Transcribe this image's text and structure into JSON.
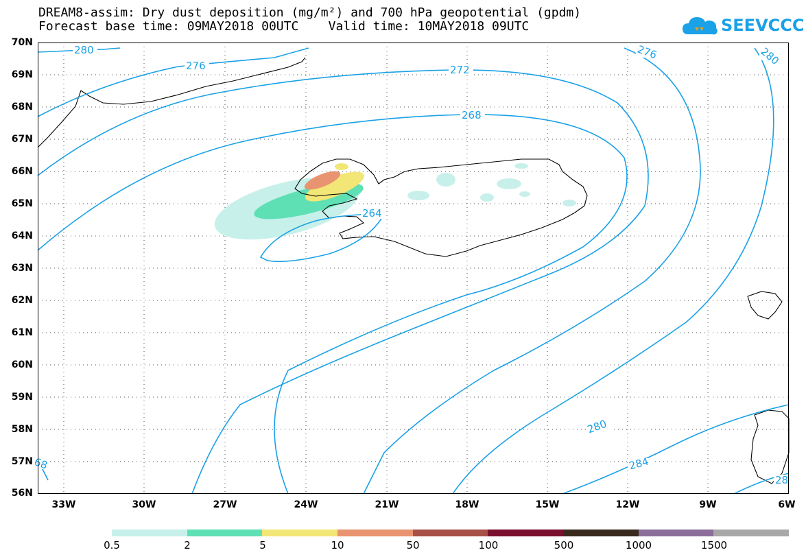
{
  "header": {
    "title_line1": "DREAM8-assim: Dry dust deposition (mg/m²) and 700 hPa geopotential (gpdm)",
    "title_line2": "Forecast base time: 09MAY2018 00UTC    Valid time: 10MAY2018 09UTC"
  },
  "logo": {
    "text": "SEEVCCC",
    "icon": "cloud-icon",
    "color": "#1aa1e6"
  },
  "map": {
    "lat_labels": [
      "70N",
      "69N",
      "68N",
      "67N",
      "66N",
      "65N",
      "64N",
      "63N",
      "62N",
      "61N",
      "60N",
      "59N",
      "58N",
      "57N",
      "56N"
    ],
    "lon_labels": [
      "33W",
      "30W",
      "27W",
      "24W",
      "21W",
      "18W",
      "15W",
      "12W",
      "9W",
      "6W"
    ],
    "contour_color": "#1aa1e6",
    "contour_labels": [
      "280",
      "276",
      "272",
      "268",
      "264",
      "276",
      "280",
      "280",
      "284",
      "68",
      "28"
    ]
  },
  "legend": {
    "labels": [
      "0.5",
      "2",
      "5",
      "10",
      "50",
      "100",
      "500",
      "1000",
      "1500"
    ],
    "colors": [
      "#c8f0ea",
      "#5ee0b4",
      "#f2e676",
      "#e99470",
      "#a65048",
      "#7a1030",
      "#3a2a1e",
      "#8c6e9a",
      "#a8a8a8"
    ]
  }
}
